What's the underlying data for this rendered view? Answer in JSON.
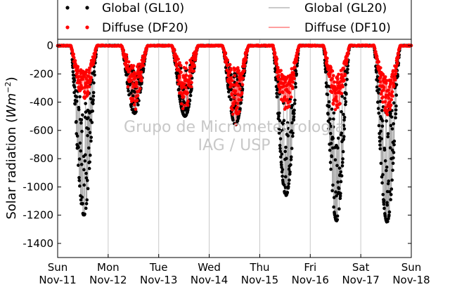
{
  "chart_data": {
    "type": "scatter",
    "ylabel_text": "Solar radiation (",
    "ylabel_unit": "Wm",
    "ylabel_exp": "−2",
    "ylabel_close": ")",
    "ylim": [
      -1500,
      50
    ],
    "yticks": [
      0,
      -200,
      -400,
      -600,
      -800,
      -1000,
      -1200,
      -1400
    ],
    "xlim": [
      0,
      7
    ],
    "x_days": [
      {
        "day": "Sun",
        "date": "Nov-11"
      },
      {
        "day": "Mon",
        "date": "Nov-12"
      },
      {
        "day": "Tue",
        "date": "Nov-13"
      },
      {
        "day": "Wed",
        "date": "Nov-14"
      },
      {
        "day": "Thu",
        "date": "Nov-15"
      },
      {
        "day": "Fri",
        "date": "Nov-16"
      },
      {
        "day": "Sat",
        "date": "Nov-17"
      },
      {
        "day": "Sun",
        "date": "Nov-18"
      }
    ],
    "grid": "vertical",
    "legend_position": "top",
    "series": [
      {
        "name": "Global (GL10)",
        "style": "dots",
        "color": "#000000"
      },
      {
        "name": "Diffuse (DF20)",
        "style": "dots",
        "color": "#ff0000"
      },
      {
        "name": "Global (GL20)",
        "style": "line",
        "color": "#aaaaaa"
      },
      {
        "name": "Diffuse (DF10)",
        "style": "line",
        "color": "#ff6666"
      }
    ],
    "daily_peaks": [
      {
        "day": 0,
        "global_min": -1200,
        "diffuse_min": -400
      },
      {
        "day": 1,
        "global_min": -480,
        "diffuse_min": -470
      },
      {
        "day": 2,
        "global_min": -500,
        "diffuse_min": -470
      },
      {
        "day": 3,
        "global_min": -560,
        "diffuse_min": -560
      },
      {
        "day": 4,
        "global_min": -1060,
        "diffuse_min": -480
      },
      {
        "day": 5,
        "global_min": -1240,
        "diffuse_min": -460
      },
      {
        "day": 6,
        "global_min": -1250,
        "diffuse_min": -500
      }
    ],
    "watermark": [
      "Grupo de Micrometeorologia",
      "IAG / USP"
    ]
  }
}
